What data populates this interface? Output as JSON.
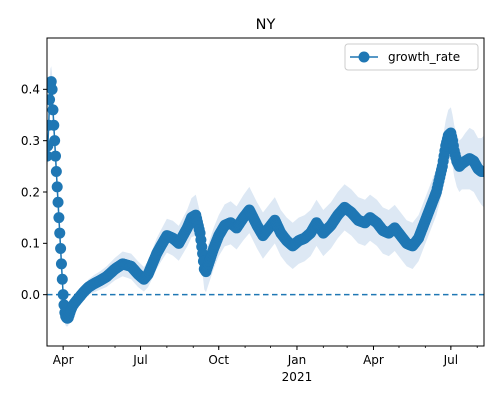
{
  "chart_data": {
    "type": "line",
    "title": "NY",
    "xlabel": "",
    "ylabel": "",
    "x_start": "2020-03-13",
    "x_end": "2021-08-09",
    "x_ticks": [
      {
        "date": "2020-04-01",
        "label": "Apr"
      },
      {
        "date": "2020-07-01",
        "label": "Jul"
      },
      {
        "date": "2020-10-01",
        "label": "Oct"
      },
      {
        "date": "2021-01-01",
        "label": "Jan"
      },
      {
        "date": "2021-04-01",
        "label": "Apr"
      },
      {
        "date": "2021-07-01",
        "label": "Jul"
      }
    ],
    "x_year_label": "2021",
    "ylim": [
      -0.1,
      0.5
    ],
    "y_ticks": [
      0.0,
      0.1,
      0.2,
      0.3,
      0.4
    ],
    "y_tick_labels": [
      "0.0",
      "0.1",
      "0.2",
      "0.3",
      "0.4"
    ],
    "reference_line": {
      "y": 0.0,
      "style": "dashed"
    },
    "legend": {
      "position": "top-right",
      "entries": [
        "growth_rate"
      ]
    },
    "grid": false,
    "colors": {
      "series": "#1f77b4",
      "band": "#dde8f4"
    },
    "series": [
      {
        "name": "growth_rate",
        "marker": "circle",
        "x": [
          "2020-03-13",
          "2020-03-14",
          "2020-03-15",
          "2020-03-16",
          "2020-03-17",
          "2020-03-18",
          "2020-03-19",
          "2020-03-20",
          "2020-03-21",
          "2020-03-22",
          "2020-03-23",
          "2020-03-24",
          "2020-03-25",
          "2020-03-26",
          "2020-03-27",
          "2020-03-28",
          "2020-03-29",
          "2020-03-30",
          "2020-03-31",
          "2020-04-01",
          "2020-04-02",
          "2020-04-03",
          "2020-04-04",
          "2020-04-05",
          "2020-04-06",
          "2020-04-07",
          "2020-04-08",
          "2020-04-10",
          "2020-04-12",
          "2020-04-15",
          "2020-04-20",
          "2020-04-25",
          "2020-05-01",
          "2020-05-08",
          "2020-05-15",
          "2020-05-22",
          "2020-06-01",
          "2020-06-10",
          "2020-06-20",
          "2020-06-28",
          "2020-07-05",
          "2020-07-10",
          "2020-07-15",
          "2020-07-20",
          "2020-07-25",
          "2020-08-01",
          "2020-08-08",
          "2020-08-15",
          "2020-08-20",
          "2020-08-25",
          "2020-08-30",
          "2020-09-04",
          "2020-09-09",
          "2020-09-12",
          "2020-09-14",
          "2020-09-16",
          "2020-09-18",
          "2020-09-20",
          "2020-09-22",
          "2020-09-25",
          "2020-10-01",
          "2020-10-08",
          "2020-10-15",
          "2020-10-22",
          "2020-10-30",
          "2020-11-06",
          "2020-11-15",
          "2020-11-22",
          "2020-11-29",
          "2020-12-06",
          "2020-12-13",
          "2020-12-20",
          "2020-12-27",
          "2021-01-03",
          "2021-01-10",
          "2021-01-17",
          "2021-01-24",
          "2021-02-01",
          "2021-02-10",
          "2021-02-18",
          "2021-02-26",
          "2021-03-06",
          "2021-03-14",
          "2021-03-22",
          "2021-03-28",
          "2021-04-05",
          "2021-04-12",
          "2021-04-19",
          "2021-04-26",
          "2021-05-03",
          "2021-05-10",
          "2021-05-17",
          "2021-05-24",
          "2021-05-31",
          "2021-06-07",
          "2021-06-14",
          "2021-06-21",
          "2021-06-25",
          "2021-06-28",
          "2021-07-01",
          "2021-07-03",
          "2021-07-05",
          "2021-07-08",
          "2021-07-11",
          "2021-07-14",
          "2021-07-18",
          "2021-07-23",
          "2021-07-28",
          "2021-08-02",
          "2021-08-06",
          "2021-08-09"
        ],
        "y": [
          0.27,
          0.29,
          0.33,
          0.38,
          0.41,
          0.415,
          0.4,
          0.36,
          0.33,
          0.3,
          0.27,
          0.24,
          0.21,
          0.18,
          0.15,
          0.12,
          0.09,
          0.06,
          0.03,
          0.0,
          -0.02,
          -0.035,
          -0.042,
          -0.045,
          -0.046,
          -0.045,
          -0.04,
          -0.03,
          -0.022,
          -0.015,
          -0.005,
          0.005,
          0.015,
          0.022,
          0.028,
          0.035,
          0.05,
          0.06,
          0.055,
          0.04,
          0.03,
          0.04,
          0.06,
          0.08,
          0.095,
          0.115,
          0.11,
          0.1,
          0.115,
          0.13,
          0.15,
          0.155,
          0.12,
          0.08,
          0.05,
          0.045,
          0.055,
          0.065,
          0.075,
          0.09,
          0.115,
          0.135,
          0.14,
          0.13,
          0.15,
          0.165,
          0.135,
          0.115,
          0.13,
          0.145,
          0.12,
          0.105,
          0.095,
          0.105,
          0.11,
          0.12,
          0.14,
          0.12,
          0.135,
          0.155,
          0.17,
          0.16,
          0.145,
          0.14,
          0.15,
          0.14,
          0.125,
          0.12,
          0.13,
          0.115,
          0.1,
          0.095,
          0.11,
          0.14,
          0.17,
          0.2,
          0.25,
          0.29,
          0.31,
          0.315,
          0.3,
          0.28,
          0.26,
          0.25,
          0.255,
          0.26,
          0.265,
          0.26,
          0.245,
          0.24,
          0.24
        ],
        "band_lower": [
          0.24,
          0.26,
          0.3,
          0.35,
          0.38,
          0.385,
          0.37,
          0.33,
          0.3,
          0.27,
          0.24,
          0.21,
          0.18,
          0.15,
          0.12,
          0.09,
          0.06,
          0.035,
          0.01,
          -0.02,
          -0.04,
          -0.055,
          -0.06,
          -0.062,
          -0.062,
          -0.06,
          -0.055,
          -0.045,
          -0.036,
          -0.028,
          -0.018,
          -0.008,
          0.0,
          0.005,
          0.01,
          0.015,
          0.028,
          0.036,
          0.03,
          0.015,
          0.006,
          0.015,
          0.032,
          0.05,
          0.064,
          0.082,
          0.076,
          0.066,
          0.08,
          0.094,
          0.112,
          0.115,
          0.08,
          0.04,
          0.01,
          0.005,
          0.015,
          0.025,
          0.035,
          0.05,
          0.075,
          0.094,
          0.098,
          0.088,
          0.106,
          0.12,
          0.09,
          0.07,
          0.085,
          0.1,
          0.075,
          0.06,
          0.05,
          0.06,
          0.065,
          0.075,
          0.095,
          0.075,
          0.09,
          0.11,
          0.125,
          0.115,
          0.1,
          0.095,
          0.105,
          0.095,
          0.08,
          0.075,
          0.085,
          0.07,
          0.055,
          0.05,
          0.065,
          0.095,
          0.125,
          0.155,
          0.2,
          0.24,
          0.26,
          0.265,
          0.25,
          0.23,
          0.21,
          0.2,
          0.205,
          0.205,
          0.205,
          0.2,
          0.185,
          0.175,
          0.17
        ],
        "band_upper": [
          0.3,
          0.32,
          0.36,
          0.41,
          0.44,
          0.445,
          0.43,
          0.39,
          0.36,
          0.33,
          0.3,
          0.27,
          0.24,
          0.21,
          0.18,
          0.15,
          0.12,
          0.085,
          0.05,
          0.02,
          0.0,
          -0.015,
          -0.024,
          -0.028,
          -0.03,
          -0.03,
          -0.025,
          -0.015,
          -0.008,
          -0.002,
          0.008,
          0.018,
          0.03,
          0.039,
          0.046,
          0.055,
          0.072,
          0.084,
          0.08,
          0.065,
          0.054,
          0.065,
          0.088,
          0.11,
          0.126,
          0.148,
          0.144,
          0.134,
          0.15,
          0.166,
          0.188,
          0.195,
          0.16,
          0.12,
          0.09,
          0.085,
          0.095,
          0.105,
          0.115,
          0.13,
          0.155,
          0.176,
          0.182,
          0.172,
          0.194,
          0.21,
          0.18,
          0.16,
          0.175,
          0.19,
          0.165,
          0.15,
          0.14,
          0.15,
          0.155,
          0.165,
          0.185,
          0.165,
          0.18,
          0.2,
          0.215,
          0.205,
          0.19,
          0.185,
          0.195,
          0.185,
          0.17,
          0.165,
          0.175,
          0.16,
          0.145,
          0.14,
          0.155,
          0.185,
          0.215,
          0.245,
          0.3,
          0.34,
          0.36,
          0.365,
          0.35,
          0.33,
          0.31,
          0.3,
          0.305,
          0.315,
          0.325,
          0.32,
          0.305,
          0.305,
          0.31
        ]
      }
    ]
  }
}
